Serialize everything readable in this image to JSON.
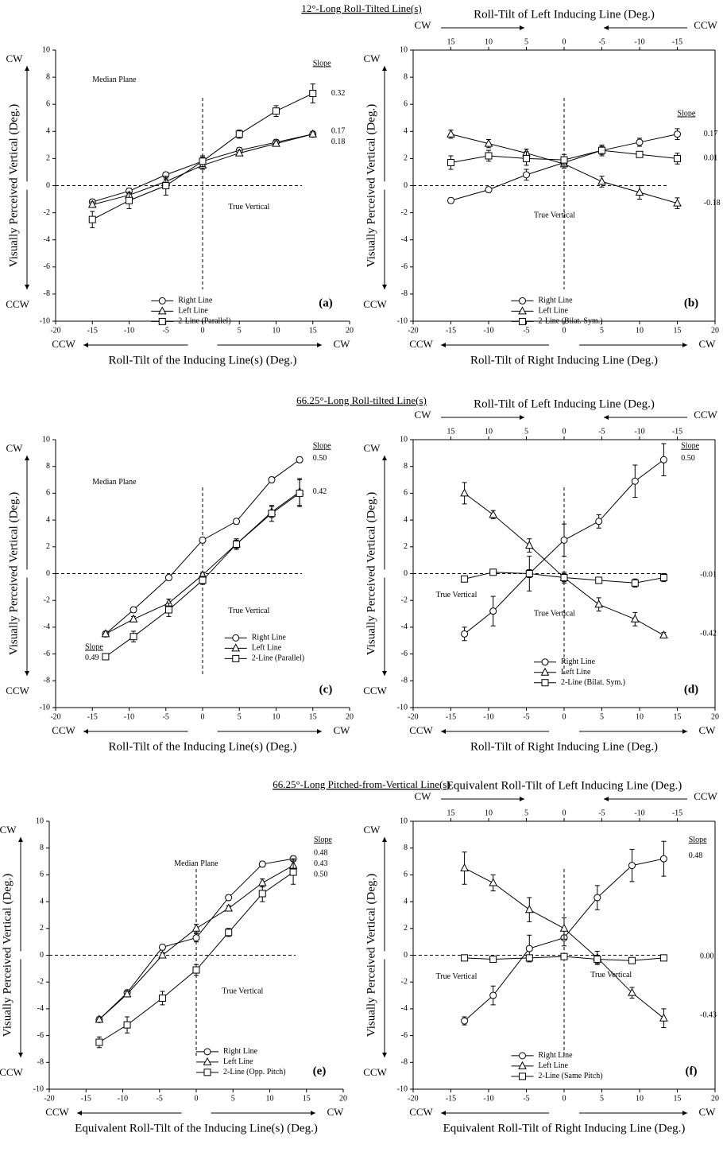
{
  "headings": [
    "12°-Long Roll-Tilted Line(s)",
    "66.25°-Long Roll-tilted Line(s)",
    "66.25°-Long Pitched-from-Vertical Line(s)"
  ],
  "chart_data": [
    {
      "type": "line",
      "panel": "(a)",
      "xlabel": "Roll-Tilt of the Inducing Line(s) (Deg.)",
      "ylabel": "Visually Perceived Vertical (Deg.)",
      "xlim": [
        -20,
        20
      ],
      "xticks": [
        -20,
        -15,
        -10,
        -5,
        0,
        5,
        10,
        15,
        20
      ],
      "ylim": [
        -10,
        10
      ],
      "yticks": [
        -10,
        -8,
        -6,
        -4,
        -2,
        0,
        2,
        4,
        6,
        8,
        10
      ],
      "y_dir": [
        "CW",
        "CCW"
      ],
      "x_dir": [
        "CCW",
        "CW"
      ],
      "annotations": [
        "Median Plane",
        "True Vertical"
      ],
      "slope_title": "Slope",
      "slopes": [
        "0.32",
        "0.17",
        "0.18"
      ],
      "x": [
        -15,
        -10,
        -5,
        0,
        5,
        10,
        15
      ],
      "series": [
        {
          "name": "Right Line",
          "marker": "circle",
          "color": "#000000",
          "values": [
            -1.2,
            -0.4,
            0.8,
            1.8,
            2.6,
            3.2,
            3.8
          ],
          "errors": [
            0.2,
            0.2,
            0.2,
            0.3,
            0.2,
            0.2,
            0.2
          ]
        },
        {
          "name": "Left Line",
          "marker": "triangle",
          "color": "#000000",
          "values": [
            -1.4,
            -0.7,
            0.3,
            1.5,
            2.4,
            3.1,
            3.8
          ],
          "errors": [
            0.2,
            0.2,
            0.2,
            0.3,
            0.2,
            0.2,
            0.2
          ]
        },
        {
          "name": "2-Line (Parallel)",
          "marker": "square",
          "color": "#000000",
          "values": [
            -2.5,
            -1.1,
            0.0,
            1.8,
            3.8,
            5.5,
            6.8
          ],
          "errors": [
            0.6,
            0.6,
            0.7,
            0.4,
            0.3,
            0.4,
            0.7
          ]
        }
      ]
    },
    {
      "type": "line",
      "panel": "(b)",
      "xlabel": "Roll-Tilt of Right Inducing Line (Deg.)",
      "x2label": "Roll-Tilt of Left Inducing Line (Deg.)",
      "ylabel": "Visually Perceived Vertical (Deg.)",
      "xlim": [
        -20,
        20
      ],
      "xticks": [
        -20,
        -15,
        -10,
        -5,
        0,
        5,
        10,
        15,
        20
      ],
      "x2lim": [
        20,
        -20
      ],
      "x2ticks": [
        15,
        10,
        5,
        0,
        -5,
        -10,
        -15
      ],
      "ylim": [
        -10,
        10
      ],
      "yticks": [
        -10,
        -8,
        -6,
        -4,
        -2,
        0,
        2,
        4,
        6,
        8,
        10
      ],
      "y_dir": [
        "CW",
        "CCW"
      ],
      "x_dir": [
        "CCW",
        "CW"
      ],
      "x2_dir": [
        "CW",
        "CCW"
      ],
      "annotations": [
        "True Vertical"
      ],
      "slope_title": "Slope",
      "slopes": [
        "0.17",
        "0.01",
        "-0.18"
      ],
      "x": [
        -15,
        -10,
        -5,
        0,
        5,
        10,
        15
      ],
      "series": [
        {
          "name": "Right Line",
          "marker": "circle",
          "color": "#000000",
          "values": [
            -1.1,
            -0.3,
            0.8,
            1.7,
            2.6,
            3.2,
            3.8
          ],
          "errors": [
            0.2,
            0.2,
            0.4,
            0.3,
            0.3,
            0.3,
            0.4
          ]
        },
        {
          "name": "Left Line",
          "marker": "triangle",
          "color": "#000000",
          "values": [
            3.8,
            3.1,
            2.4,
            1.6,
            0.3,
            -0.5,
            -1.3
          ],
          "errors": [
            0.3,
            0.3,
            0.3,
            0.3,
            0.4,
            0.5,
            0.4
          ]
        },
        {
          "name": "2-Line (Bilat. Sym.)",
          "marker": "square",
          "color": "#000000",
          "values": [
            1.7,
            2.2,
            2.0,
            1.9,
            2.6,
            2.3,
            2.0
          ],
          "errors": [
            0.5,
            0.4,
            0.5,
            0.4,
            0.4,
            0.2,
            0.4
          ]
        }
      ]
    },
    {
      "type": "line",
      "panel": "(c)",
      "xlabel": "Roll-Tilt of the Inducing Line(s) (Deg.)",
      "ylabel": "Visually Perceived Vertical (Deg.)",
      "xlim": [
        -20,
        20
      ],
      "xticks": [
        -20,
        -15,
        -10,
        -5,
        0,
        5,
        10,
        15,
        20
      ],
      "ylim": [
        -10,
        10
      ],
      "yticks": [
        -10,
        -8,
        -6,
        -4,
        -2,
        0,
        2,
        4,
        6,
        8,
        10
      ],
      "y_dir": [
        "CW",
        "CCW"
      ],
      "x_dir": [
        "CCW",
        "CW"
      ],
      "annotations": [
        "Median Plane",
        "True Vertical"
      ],
      "slope_title": "Slope",
      "slopes": [
        "0.50",
        "0.42",
        "0.49"
      ],
      "x": [
        -13.2,
        -9.4,
        -4.6,
        0,
        4.6,
        9.4,
        13.2
      ],
      "series": [
        {
          "name": "Right Line",
          "marker": "circle",
          "color": "#000000",
          "values": [
            -4.5,
            -2.7,
            -0.3,
            2.5,
            3.9,
            7.0,
            8.5
          ],
          "errors": [
            0.2,
            0.2,
            0.2,
            0.2,
            0.2,
            0.2,
            0.2
          ]
        },
        {
          "name": "Left Line",
          "marker": "triangle",
          "color": "#000000",
          "values": [
            -4.5,
            -3.4,
            -2.2,
            -0.1,
            2.2,
            4.6,
            6.1
          ],
          "errors": [
            0.2,
            0.2,
            0.3,
            0.2,
            0.3,
            0.4,
            1.0
          ]
        },
        {
          "name": "2-Line (Parallel)",
          "marker": "square",
          "color": "#000000",
          "values": [
            -6.2,
            -4.7,
            -2.7,
            -0.5,
            2.2,
            4.5,
            6.0
          ],
          "errors": [
            0.2,
            0.4,
            0.5,
            0.3,
            0.4,
            0.6,
            1.0
          ]
        }
      ]
    },
    {
      "type": "line",
      "panel": "(d)",
      "xlabel": "Roll-Tilt of Right Inducing Line (Deg.)",
      "x2label": "Roll-Tilt of Left Inducing Line (Deg.)",
      "ylabel": "Visually Perceived Vertical (Deg.)",
      "xlim": [
        -20,
        20
      ],
      "xticks": [
        -20,
        -15,
        -10,
        -5,
        0,
        5,
        10,
        15,
        20
      ],
      "x2lim": [
        20,
        -20
      ],
      "x2ticks": [
        15,
        10,
        5,
        0,
        -5,
        -10,
        -15
      ],
      "ylim": [
        -10,
        10
      ],
      "yticks": [
        -10,
        -8,
        -6,
        -4,
        -2,
        0,
        2,
        4,
        6,
        8,
        10
      ],
      "y_dir": [
        "CW",
        "CCW"
      ],
      "x_dir": [
        "CCW",
        "CW"
      ],
      "x2_dir": [
        "CW",
        "CCW"
      ],
      "annotations": [
        "True Vertical",
        "True Vertical"
      ],
      "slope_title": "Slope",
      "slopes": [
        "0.50",
        "-0.01",
        "-0.42"
      ],
      "x": [
        -13.2,
        -9.4,
        -4.6,
        0,
        4.6,
        9.4,
        13.2
      ],
      "series": [
        {
          "name": "Right Line",
          "marker": "circle",
          "color": "#000000",
          "values": [
            -4.5,
            -2.8,
            0.0,
            2.5,
            3.9,
            6.9,
            8.5
          ],
          "errors": [
            0.5,
            1.1,
            1.3,
            1.2,
            0.5,
            1.2,
            1.2
          ]
        },
        {
          "name": "Left Line",
          "marker": "triangle",
          "color": "#000000",
          "values": [
            6.0,
            4.4,
            2.1,
            -0.3,
            -2.3,
            -3.4,
            -4.6
          ],
          "errors": [
            0.8,
            0.3,
            0.5,
            0.4,
            0.5,
            0.5,
            0.2
          ]
        },
        {
          "name": "2-Line (Bilat. Sym.)",
          "marker": "square",
          "color": "#000000",
          "values": [
            -0.4,
            0.1,
            0.0,
            -0.3,
            -0.5,
            -0.7,
            -0.3
          ],
          "errors": [
            0.2,
            0.2,
            0.3,
            0.3,
            0.2,
            0.3,
            0.3
          ]
        }
      ]
    },
    {
      "type": "line",
      "panel": "(e)",
      "xlabel": "Equivalent Roll-Tilt of the Inducing Line(s) (Deg.)",
      "ylabel": "Visually Perceived Vertical (Deg.)",
      "xlim": [
        -20,
        20
      ],
      "xticks": [
        -20,
        -15,
        -10,
        -5,
        0,
        5,
        10,
        15,
        20
      ],
      "ylim": [
        -10,
        10
      ],
      "yticks": [
        -10,
        -8,
        -6,
        -4,
        -2,
        0,
        2,
        4,
        6,
        8,
        10
      ],
      "y_dir": [
        "CW",
        "CCW"
      ],
      "x_dir": [
        "CCW",
        "CW"
      ],
      "annotations": [
        "Median Plane",
        "True Vertical"
      ],
      "slope_title": "Slope",
      "slopes": [
        "0.48",
        "0.43",
        "0.50"
      ],
      "x": [
        -13.2,
        -9.4,
        -4.6,
        0,
        4.4,
        9,
        13.2
      ],
      "series": [
        {
          "name": "Right Line",
          "marker": "circle",
          "color": "#000000",
          "values": [
            -4.8,
            -2.8,
            0.6,
            1.3,
            4.3,
            6.8,
            7.2
          ],
          "errors": [
            0.2,
            0.2,
            0.2,
            0.3,
            0.2,
            0.2,
            0.2
          ]
        },
        {
          "name": "Left Line",
          "marker": "triangle",
          "color": "#000000",
          "values": [
            -4.8,
            -2.9,
            0.0,
            2.0,
            3.5,
            5.4,
            6.7
          ],
          "errors": [
            0.2,
            0.2,
            0.2,
            0.3,
            0.2,
            0.3,
            0.5
          ]
        },
        {
          "name": "2-Line (Opp. Pitch)",
          "marker": "square",
          "color": "#000000",
          "values": [
            -6.5,
            -5.2,
            -3.2,
            -1.1,
            1.7,
            4.6,
            6.2
          ],
          "errors": [
            0.4,
            0.6,
            0.5,
            0.4,
            0.3,
            0.6,
            0.9
          ]
        }
      ]
    },
    {
      "type": "line",
      "panel": "(f)",
      "xlabel": "Equivalent Roll-Tilt of Right Inducing Line (Deg.)",
      "x2label": "Equivalent Roll-Tilt of Left Inducing Line (Deg.)",
      "ylabel": "Visually Perceived Vertical (Deg.)",
      "xlim": [
        -20,
        20
      ],
      "xticks": [
        -20,
        -15,
        -10,
        -5,
        0,
        5,
        10,
        15,
        20
      ],
      "x2lim": [
        20,
        -20
      ],
      "x2ticks": [
        15,
        10,
        5,
        0,
        -5,
        -10,
        -15
      ],
      "ylim": [
        -10,
        10
      ],
      "yticks": [
        -10,
        -8,
        -6,
        -4,
        -2,
        0,
        2,
        4,
        6,
        8,
        10
      ],
      "y_dir": [
        "CW",
        "CCW"
      ],
      "x_dir": [
        "CCW",
        "CW"
      ],
      "x2_dir": [
        "CW",
        "CCW"
      ],
      "annotations": [
        "True Vertical",
        "True Vertical"
      ],
      "slope_title": "Slope",
      "slopes": [
        "0.48",
        "0.00",
        "-0.43"
      ],
      "x": [
        -13.2,
        -9.4,
        -4.6,
        0,
        4.4,
        9,
        13.2
      ],
      "series": [
        {
          "name": "Right Line",
          "marker": "circle",
          "color": "#000000",
          "values": [
            -4.9,
            -3.0,
            0.5,
            1.3,
            4.3,
            6.7,
            7.2
          ],
          "errors": [
            0.3,
            0.7,
            1.0,
            0.6,
            0.9,
            1.2,
            1.3
          ]
        },
        {
          "name": "Left Line",
          "marker": "triangle",
          "color": "#000000",
          "values": [
            6.5,
            5.4,
            3.4,
            2.0,
            -0.2,
            -2.8,
            -4.7
          ],
          "errors": [
            1.2,
            0.6,
            0.9,
            0.8,
            0.5,
            0.4,
            0.7
          ]
        },
        {
          "name": "2-Line (Same Pitch)",
          "marker": "square",
          "color": "#000000",
          "values": [
            -0.2,
            -0.3,
            -0.2,
            -0.1,
            -0.3,
            -0.4,
            -0.2
          ],
          "errors": [
            0.2,
            0.2,
            0.2,
            0.2,
            0.3,
            0.2,
            0.2
          ]
        }
      ]
    }
  ]
}
